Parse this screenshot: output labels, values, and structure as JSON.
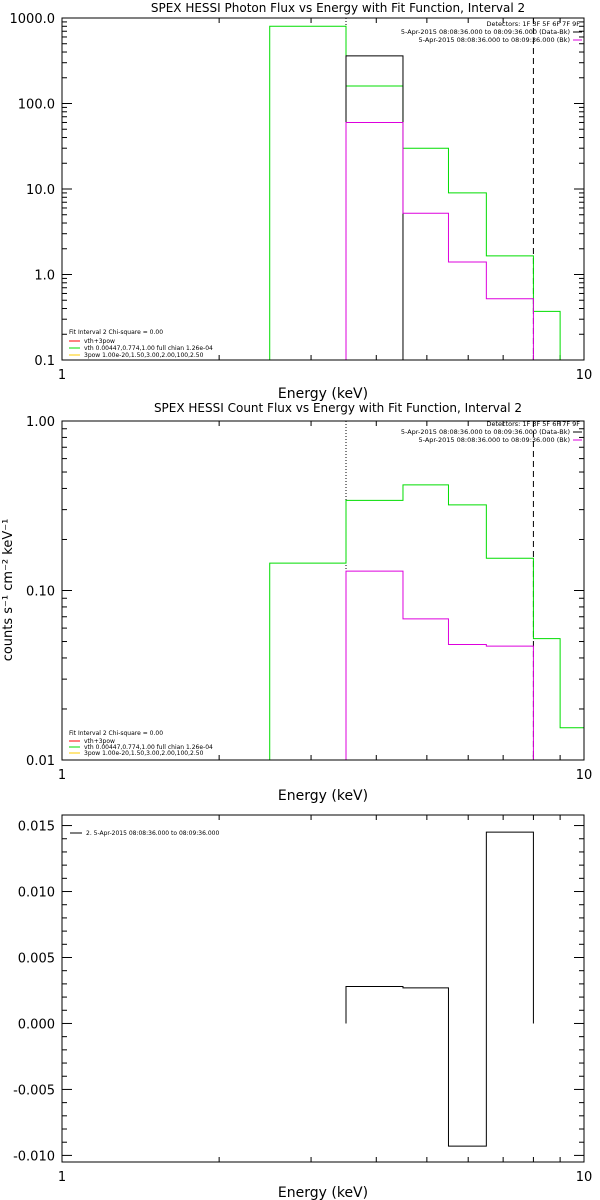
{
  "chart_data": [
    {
      "type": "line",
      "title": "SPEX HESSI Photon Flux vs Energy with Fit Function, Interval 2",
      "xlabel": "Energy (keV)",
      "ylabel": "",
      "xscale": "log",
      "yscale": "log",
      "xlim": [
        1,
        10
      ],
      "ylim": [
        0.1,
        1000
      ],
      "x_ticks": [
        1,
        10
      ],
      "x_tick_labels": [
        "1",
        "10"
      ],
      "y_ticks": [
        0.1,
        1,
        10,
        100,
        1000
      ],
      "y_tick_labels": [
        "0.1",
        "1.0",
        "10.0",
        "100.0",
        "1000.0"
      ],
      "vlines": [
        {
          "x": 3.5,
          "style": "dotted"
        },
        {
          "x": 8.0,
          "style": "dashed"
        }
      ],
      "top_labels": [
        "Detectors: 1F 3F 5F 6F 7F 9F",
        "5-Apr-2015 08:08:36.000 to 08:09:36.000 (Data-Bk)",
        "5-Apr-2015 08:08:36.000 to 08:09:36.000 (Bk)"
      ],
      "legend": {
        "location": "bottom-left",
        "header": "Fit Interval 2   Chi-square = 0.00",
        "entries": [
          {
            "label": "vth+3pow",
            "color": "#ff0000"
          },
          {
            "label": "vth 0.00447,0.774,1.00  full chian 1.26e-04",
            "color": "#00dd00"
          },
          {
            "label": "3pow 1.00e-20,1.50,3.00,2.00,100,2.50",
            "color": "#ffcc00"
          }
        ]
      },
      "series": [
        {
          "color": "#00dd00",
          "edges": [
            2.5,
            3.5,
            4.5,
            5.5,
            6.5,
            8.0,
            9.0
          ],
          "values": [
            800,
            160,
            30,
            9,
            1.65,
            0.37
          ]
        },
        {
          "color": "#000000",
          "edges": [
            3.5,
            4.5
          ],
          "values": [
            360
          ]
        },
        {
          "color": "#dd00dd",
          "edges": [
            3.5,
            4.5,
            5.5,
            6.5,
            8.0
          ],
          "values": [
            60,
            5.2,
            1.4,
            0.52
          ]
        }
      ]
    },
    {
      "type": "line",
      "title": "SPEX HESSI Count Flux vs Energy with Fit Function, Interval 2",
      "xlabel": "Energy (keV)",
      "ylabel": "counts s⁻¹ cm⁻² keV⁻¹",
      "xscale": "log",
      "yscale": "log",
      "xlim": [
        1,
        10
      ],
      "ylim": [
        0.01,
        1
      ],
      "x_ticks": [
        1,
        10
      ],
      "x_tick_labels": [
        "1",
        "10"
      ],
      "y_ticks": [
        0.01,
        0.1,
        1
      ],
      "y_tick_labels": [
        "0.01",
        "0.10",
        "1.00"
      ],
      "vlines": [
        {
          "x": 3.5,
          "style": "dotted"
        },
        {
          "x": 8.0,
          "style": "dashed"
        }
      ],
      "top_labels": [
        "Detectors: 1F 3F 5F 6F 7F 9F",
        "5-Apr-2015 08:08:36.000 to 08:09:36.000 (Data-Bk)",
        "5-Apr-2015 08:08:36.000 to 08:09:36.000 (Bk)"
      ],
      "legend": {
        "location": "bottom-left",
        "header": "Fit Interval 2   Chi-square = 0.00",
        "entries": [
          {
            "label": "vth+3pow",
            "color": "#ff0000"
          },
          {
            "label": "vth 0.00447,0.774,1.00  full chian 1.26e-04",
            "color": "#00dd00"
          },
          {
            "label": "3pow 1.00e-20,1.50,3.00,2.00,100,2.50",
            "color": "#ffcc00"
          }
        ]
      },
      "series": [
        {
          "color": "#00dd00",
          "edges": [
            2.5,
            3.5,
            4.5,
            5.5,
            6.5,
            8.0,
            9.0,
            10.0
          ],
          "values": [
            0.145,
            0.34,
            0.42,
            0.32,
            0.155,
            0.052,
            0.0155
          ]
        },
        {
          "color": "#dd00dd",
          "edges": [
            3.5,
            4.5,
            5.5,
            6.5,
            8.0
          ],
          "values": [
            0.13,
            0.068,
            0.048,
            0.047
          ]
        }
      ]
    },
    {
      "type": "line",
      "title": "",
      "xlabel": "Energy (keV)",
      "ylabel": "",
      "xscale": "log",
      "yscale": "linear",
      "xlim": [
        1,
        10
      ],
      "ylim": [
        -0.0105,
        0.0158
      ],
      "x_ticks": [
        1,
        10
      ],
      "x_tick_labels": [
        "1",
        "10"
      ],
      "y_ticks": [
        -0.01,
        -0.005,
        0,
        0.005,
        0.01,
        0.015
      ],
      "y_tick_labels": [
        "-0.010",
        "-0.005",
        "0.000",
        "0.005",
        "0.010",
        "0.015"
      ],
      "legend": {
        "location": "top-left",
        "entries": [
          {
            "label": "2.  5-Apr-2015 08:08:36.000 to 08:09:36.000",
            "color": "#000000"
          }
        ]
      },
      "series": [
        {
          "color": "#000000",
          "edges": [
            3.5,
            4.5,
            5.5,
            6.5,
            8.0
          ],
          "values": [
            0.0028,
            0.0027,
            -0.0093,
            0.0145
          ]
        }
      ]
    }
  ]
}
